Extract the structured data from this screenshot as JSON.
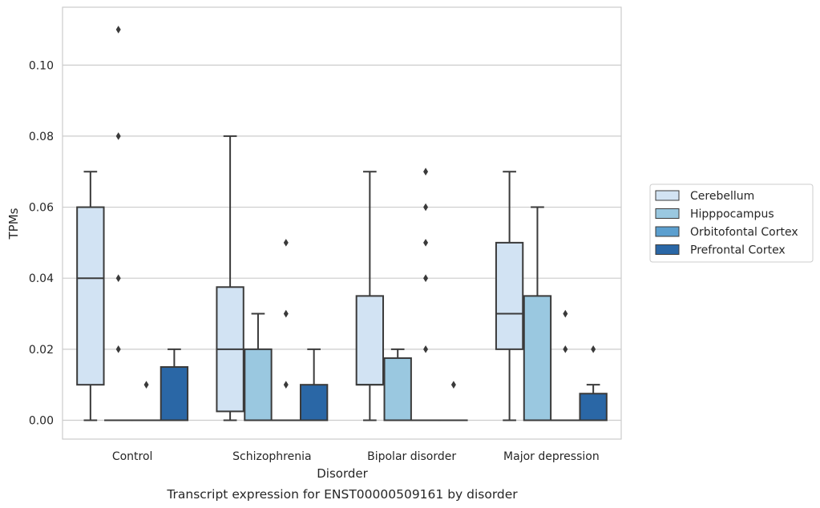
{
  "chart_data": {
    "type": "boxplot",
    "xlabel": "Disorder",
    "ylabel": "TPMs",
    "caption": "Transcript expression for ENST00000509161 by disorder",
    "categories": [
      "Control",
      "Schizophrenia",
      "Bipolar disorder",
      "Major depression"
    ],
    "ylim": [
      -0.0053,
      0.1163
    ],
    "yticks": [
      0.0,
      0.02,
      0.04,
      0.06,
      0.08,
      0.1
    ],
    "ytick_labels": [
      "0.00",
      "0.02",
      "0.04",
      "0.06",
      "0.08",
      "0.10"
    ],
    "grid": "horizontal",
    "legend_position": "center-right",
    "series": [
      {
        "name": "Cerebellum",
        "color": "#d2e3f3",
        "boxes": [
          {
            "whislo": 0.0,
            "q1": 0.01,
            "med": 0.04,
            "q3": 0.06,
            "whishi": 0.07,
            "fliers": []
          },
          {
            "whislo": 0.0,
            "q1": 0.0025,
            "med": 0.02,
            "q3": 0.0375,
            "whishi": 0.08,
            "fliers": []
          },
          {
            "whislo": 0.0,
            "q1": 0.01,
            "med": 0.01,
            "q3": 0.035,
            "whishi": 0.07,
            "fliers": []
          },
          {
            "whislo": 0.0,
            "q1": 0.02,
            "med": 0.03,
            "q3": 0.05,
            "whishi": 0.07,
            "fliers": []
          }
        ]
      },
      {
        "name": "Hipppocampus",
        "color": "#9ac8e0",
        "boxes": [
          {
            "whislo": 0.0,
            "q1": 0.0,
            "med": 0.0,
            "q3": 0.0,
            "whishi": 0.0,
            "fliers": [
              0.02,
              0.04,
              0.08,
              0.11
            ]
          },
          {
            "whislo": 0.0,
            "q1": 0.0,
            "med": 0.0,
            "q3": 0.02,
            "whishi": 0.03,
            "fliers": []
          },
          {
            "whislo": 0.0,
            "q1": 0.0,
            "med": 0.0,
            "q3": 0.0175,
            "whishi": 0.02,
            "fliers": []
          },
          {
            "whislo": 0.0,
            "q1": 0.0,
            "med": 0.0,
            "q3": 0.035,
            "whishi": 0.06,
            "fliers": []
          }
        ]
      },
      {
        "name": "Orbitofontal Cortex",
        "color": "#5b9fcf",
        "boxes": [
          {
            "whislo": 0.0,
            "q1": 0.0,
            "med": 0.0,
            "q3": 0.0,
            "whishi": 0.0,
            "fliers": [
              0.01
            ]
          },
          {
            "whislo": 0.0,
            "q1": 0.0,
            "med": 0.0,
            "q3": 0.0,
            "whishi": 0.0,
            "fliers": [
              0.01,
              0.03,
              0.05
            ]
          },
          {
            "whislo": 0.0,
            "q1": 0.0,
            "med": 0.0,
            "q3": 0.0,
            "whishi": 0.0,
            "fliers": [
              0.02,
              0.04,
              0.05,
              0.06,
              0.07
            ]
          },
          {
            "whislo": 0.0,
            "q1": 0.0,
            "med": 0.0,
            "q3": 0.0,
            "whishi": 0.0,
            "fliers": [
              0.02,
              0.03
            ]
          }
        ]
      },
      {
        "name": "Prefrontal Cortex",
        "color": "#2a67a6",
        "boxes": [
          {
            "whislo": 0.0,
            "q1": 0.0,
            "med": 0.0,
            "q3": 0.015,
            "whishi": 0.02,
            "fliers": []
          },
          {
            "whislo": 0.0,
            "q1": 0.0,
            "med": 0.0,
            "q3": 0.01,
            "whishi": 0.02,
            "fliers": []
          },
          {
            "whislo": 0.0,
            "q1": 0.0,
            "med": 0.0,
            "q3": 0.0,
            "whishi": 0.0,
            "fliers": [
              0.01
            ]
          },
          {
            "whislo": 0.0,
            "q1": 0.0,
            "med": 0.0,
            "q3": 0.0075,
            "whishi": 0.01,
            "fliers": [
              0.02
            ]
          }
        ]
      }
    ]
  }
}
